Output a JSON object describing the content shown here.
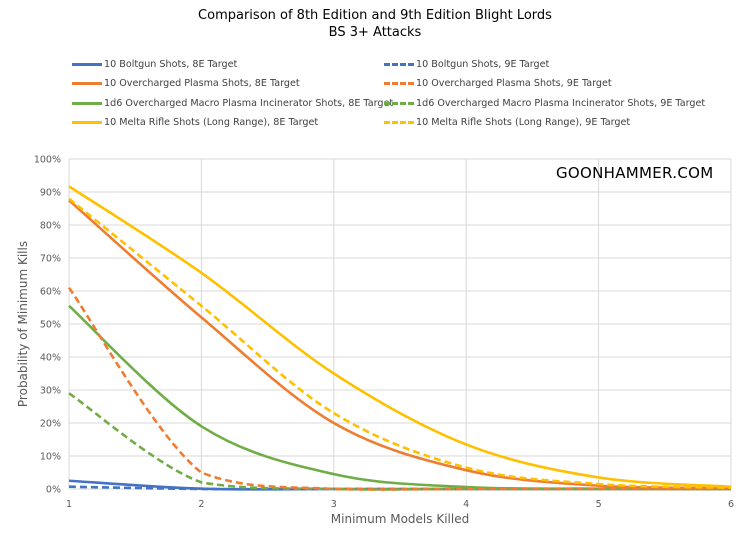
{
  "chart_data": {
    "type": "line",
    "title": "Comparison of 8th Edition and 9th Edition Blight Lords",
    "subtitle": "BS 3+ Attacks",
    "xlabel": "Minimum Models Killed",
    "ylabel": "Probability of Minimum Kills",
    "watermark": "GOONHAMMER.COM",
    "x": [
      1,
      2,
      3,
      4,
      5,
      6
    ],
    "xlim": [
      1,
      6
    ],
    "ylim": [
      0,
      1
    ],
    "x_ticks": [
      "1",
      "2",
      "3",
      "4",
      "5",
      "6"
    ],
    "y_ticks": [
      "0%",
      "10%",
      "20%",
      "30%",
      "40%",
      "50%",
      "60%",
      "70%",
      "80%",
      "90%",
      "100%"
    ],
    "grid": true,
    "legend_position": "top",
    "smoothed": true,
    "series": [
      {
        "name": "10 Boltgun Shots, 8E Target",
        "color": "#4472C4",
        "style": "solid",
        "values": [
          0.025,
          0.001,
          0.0,
          0.0,
          0.0,
          0.0
        ]
      },
      {
        "name": "10 Boltgun Shots, 9E Target",
        "color": "#4472C4",
        "style": "dashed",
        "values": [
          0.007,
          0.0,
          0.0,
          0.0,
          0.0,
          0.0
        ]
      },
      {
        "name": "10 Overcharged Plasma Shots, 8E Target",
        "color": "#ED7D31",
        "style": "solid",
        "values": [
          0.875,
          0.52,
          0.2,
          0.057,
          0.01,
          0.003
        ]
      },
      {
        "name": "10 Overcharged Plasma Shots, 9E Target",
        "color": "#ED7D31",
        "style": "dashed",
        "values": [
          0.61,
          0.05,
          0.0,
          0.0,
          0.0,
          0.0
        ]
      },
      {
        "name": "1d6 Overcharged Macro Plasma Incinerator Shots, 8E Target",
        "color": "#70AD47",
        "style": "solid",
        "values": [
          0.555,
          0.19,
          0.045,
          0.006,
          0.001,
          0.0
        ]
      },
      {
        "name": "1d6 Overcharged Macro Plasma Incinerator Shots, 9E Target",
        "color": "#70AD47",
        "style": "dashed",
        "values": [
          0.29,
          0.02,
          0.0,
          0.0,
          0.0,
          0.0
        ]
      },
      {
        "name": "10 Melta Rifle Shots (Long Range), 8E Target",
        "color": "#FFC000",
        "style": "solid",
        "values": [
          0.917,
          0.655,
          0.35,
          0.135,
          0.035,
          0.007
        ]
      },
      {
        "name": "10 Melta Rifle Shots (Long Range), 9E Target",
        "color": "#FFC000",
        "style": "dashed",
        "values": [
          0.88,
          0.555,
          0.23,
          0.065,
          0.015,
          0.004
        ]
      }
    ]
  }
}
